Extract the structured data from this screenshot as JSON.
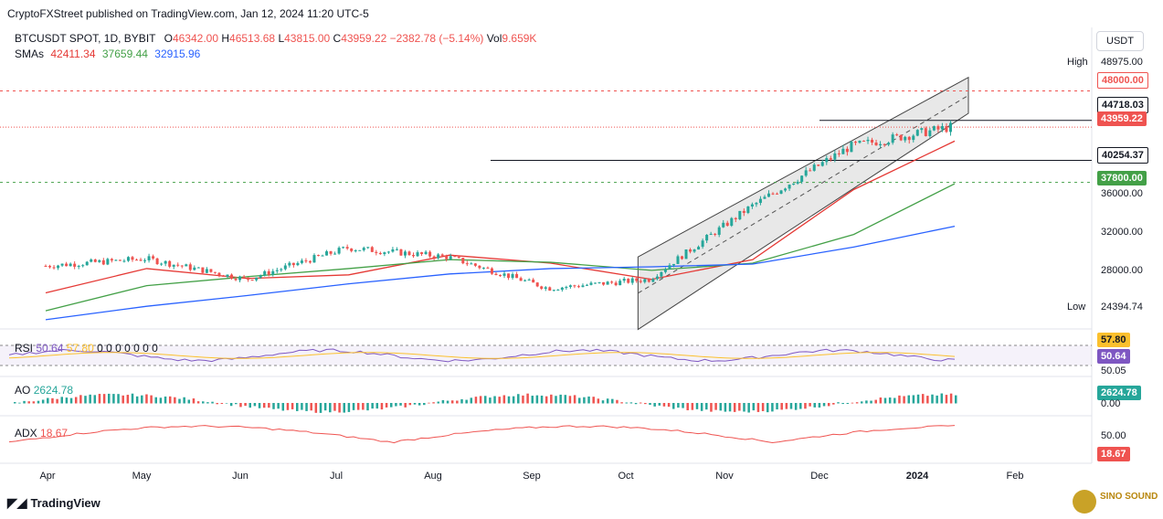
{
  "header": {
    "publisher": "CryptoFXStreet published on TradingView.com, Jan 12, 2024 11:20 UTC-5"
  },
  "legend": {
    "symbol": "BTCUSDT SPOT, 1D, BYBIT",
    "o_label": "O",
    "o": "46342.00",
    "h_label": "H",
    "h": "46513.68",
    "l_label": "L",
    "l": "43815.00",
    "c_label": "C",
    "c": "43959.22",
    "chg": "−2382.78 (−5.14%)",
    "vol_label": "Vol",
    "vol": "9.659K",
    "smas_label": "SMAs",
    "sma1": "42411.34",
    "sma2": "37659.44",
    "sma3": "32915.96"
  },
  "currency": "USDT",
  "price_axis": {
    "high_label": "High",
    "high_value": "48975.00",
    "low_label": "Low",
    "low_value": "24394.74",
    "ticks": [
      "36000.00",
      "32000.00",
      "28000.00"
    ],
    "tags": {
      "red48000": "48000.00",
      "black44718": "44718.03",
      "close": "43959.22",
      "black40254": "40254.37",
      "green37800": "37800.00"
    }
  },
  "indicators": {
    "rsi": {
      "label": "RSI",
      "value": "50.64",
      "value2": "57.80",
      "placeholder_vals": "0 0 0 0 0 0 0",
      "axis_low": "50.05"
    },
    "ao": {
      "label": "AO",
      "value": "2624.78",
      "axis": "0.00"
    },
    "adx": {
      "label": "ADX",
      "value": "18.67",
      "axis": "50.00"
    }
  },
  "x_axis": [
    "Apr",
    "May",
    "Jun",
    "Jul",
    "Aug",
    "Sep",
    "Oct",
    "Nov",
    "Dec",
    "2024",
    "Feb"
  ],
  "footer": {
    "brand": "TradingView",
    "watermark": "SINO SOUND"
  },
  "colors": {
    "up": "#26a69a",
    "down": "#ef5350",
    "sma1": "#e53935",
    "sma2": "#43a047",
    "sma3": "#2962ff",
    "rsi": "#7e57c2",
    "rsi_ma": "#fbc02d"
  },
  "chart_data": {
    "type": "line",
    "title": "BTCUSDT SPOT, 1D, BYBIT",
    "categories": [
      "Apr",
      "May",
      "Jun",
      "Jul",
      "Aug",
      "Sep",
      "Oct",
      "Nov",
      "Dec",
      "2024"
    ],
    "series": [
      {
        "name": "BTCUSDT",
        "values": [
          28500,
          29300,
          27000,
          30500,
          29500,
          26000,
          27000,
          35000,
          41800,
          43959
        ]
      },
      {
        "name": "SMA 42411.34",
        "values": [
          25500,
          28200,
          27100,
          27500,
          29700,
          28800,
          27000,
          29200,
          37000,
          42411
        ]
      },
      {
        "name": "SMA 37659.44",
        "values": [
          23500,
          26300,
          27300,
          28200,
          29200,
          28900,
          28000,
          28800,
          32000,
          37659
        ]
      },
      {
        "name": "SMA 32915.96",
        "values": [
          22500,
          24000,
          25200,
          26500,
          27600,
          28200,
          28400,
          28700,
          30600,
          32916
        ]
      }
    ],
    "levels": [
      48000.0,
      44718.03,
      43959.22,
      40254.37,
      37800.0
    ],
    "high": 48975.0,
    "low": 24394.74,
    "ylim": [
      23000,
      51000
    ],
    "grid": false
  }
}
